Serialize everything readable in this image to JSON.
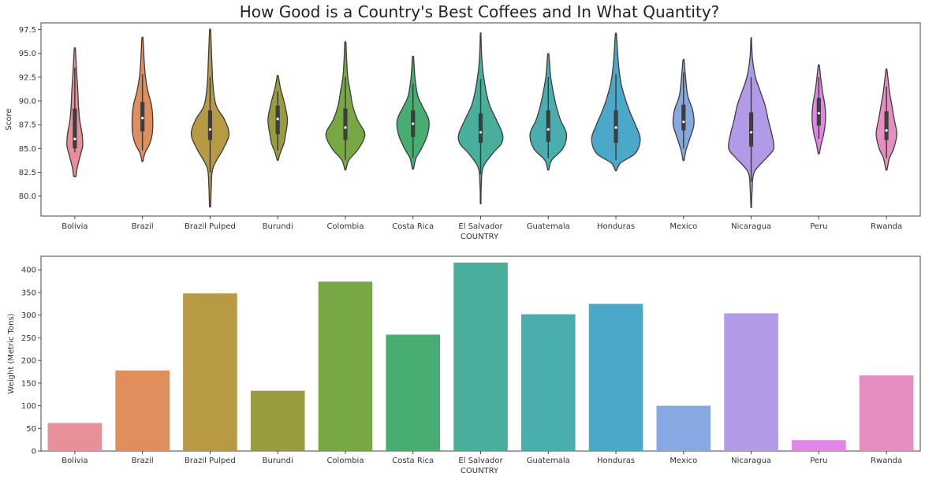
{
  "chart_data": [
    {
      "type": "violin",
      "title": "How Good is a Country's Best Coffees and In What Quantity?",
      "xlabel": "COUNTRY",
      "ylabel": "Score",
      "ylim": [
        77.9,
        98.2
      ],
      "yticks": [
        80.0,
        82.5,
        85.0,
        87.5,
        90.0,
        92.5,
        95.0,
        97.5
      ],
      "ytick_labels": [
        "80.0",
        "82.5",
        "85.0",
        "87.5",
        "90.0",
        "92.5",
        "95.0",
        "97.5"
      ],
      "grid": false,
      "categories": [
        "Bolivia",
        "Brazil",
        "Brazil Pulped",
        "Burundi",
        "Colombia",
        "Costa Rica",
        "El Salvador",
        "Guatemala",
        "Honduras",
        "Mexico",
        "Nicaragua",
        "Peru",
        "Rwanda"
      ],
      "colors": [
        "#e8909a",
        "#e08f5c",
        "#b89a45",
        "#9a9b3f",
        "#77a844",
        "#47ad71",
        "#4aae9c",
        "#4aaeae",
        "#4ba8c8",
        "#87a9e3",
        "#b39ae8",
        "#e385e6",
        "#e68ec2"
      ],
      "series": [
        {
          "category": "Bolivia",
          "min": 82.1,
          "max": 95.4,
          "q1": 85.0,
          "median": 86.0,
          "q3": 89.2,
          "whisker_low": 84.6,
          "whisker_high": 93.5,
          "profile": [
            [
              82.1,
              0.02
            ],
            [
              83.0,
              0.04
            ],
            [
              84.5,
              0.1
            ],
            [
              85.3,
              0.13
            ],
            [
              86.5,
              0.12
            ],
            [
              88.0,
              0.08
            ],
            [
              89.5,
              0.06
            ],
            [
              91.0,
              0.05
            ],
            [
              93.0,
              0.03
            ],
            [
              95.4,
              0.01
            ]
          ]
        },
        {
          "category": "Brazil",
          "min": 83.7,
          "max": 96.5,
          "q1": 86.8,
          "median": 88.2,
          "q3": 89.9,
          "whisker_low": 84.8,
          "whisker_high": 92.8,
          "profile": [
            [
              83.7,
              0.01
            ],
            [
              84.5,
              0.04
            ],
            [
              85.5,
              0.12
            ],
            [
              86.5,
              0.16
            ],
            [
              88.0,
              0.17
            ],
            [
              89.5,
              0.15
            ],
            [
              91.0,
              0.09
            ],
            [
              92.5,
              0.05
            ],
            [
              94.0,
              0.03
            ],
            [
              96.5,
              0.01
            ]
          ]
        },
        {
          "category": "Brazil Pulped",
          "min": 79.0,
          "max": 97.3,
          "q1": 85.9,
          "median": 87.0,
          "q3": 89.0,
          "whisker_low": 82.5,
          "whisker_high": 92.5,
          "profile": [
            [
              79.0,
              0.01
            ],
            [
              81.0,
              0.02
            ],
            [
              83.0,
              0.05
            ],
            [
              85.0,
              0.22
            ],
            [
              86.5,
              0.31
            ],
            [
              88.0,
              0.24
            ],
            [
              89.5,
              0.1
            ],
            [
              91.5,
              0.05
            ],
            [
              94.0,
              0.03
            ],
            [
              97.3,
              0.01
            ]
          ]
        },
        {
          "category": "Burundi",
          "min": 83.8,
          "max": 92.6,
          "q1": 86.5,
          "median": 88.1,
          "q3": 89.5,
          "whisker_low": 84.8,
          "whisker_high": 91.0,
          "profile": [
            [
              83.8,
              0.01
            ],
            [
              84.5,
              0.04
            ],
            [
              85.5,
              0.1
            ],
            [
              86.5,
              0.13
            ],
            [
              88.0,
              0.16
            ],
            [
              89.5,
              0.12
            ],
            [
              90.5,
              0.08
            ],
            [
              91.5,
              0.04
            ],
            [
              92.6,
              0.01
            ]
          ]
        },
        {
          "category": "Colombia",
          "min": 82.8,
          "max": 96.1,
          "q1": 85.9,
          "median": 87.2,
          "q3": 89.2,
          "whisker_low": 83.8,
          "whisker_high": 92.5,
          "profile": [
            [
              82.8,
              0.01
            ],
            [
              83.8,
              0.06
            ],
            [
              85.0,
              0.22
            ],
            [
              86.5,
              0.32
            ],
            [
              88.0,
              0.2
            ],
            [
              89.5,
              0.12
            ],
            [
              91.0,
              0.08
            ],
            [
              92.5,
              0.04
            ],
            [
              94.5,
              0.02
            ],
            [
              96.1,
              0.01
            ]
          ]
        },
        {
          "category": "Costa Rica",
          "min": 82.9,
          "max": 94.6,
          "q1": 86.2,
          "median": 87.6,
          "q3": 89.0,
          "whisker_low": 84.0,
          "whisker_high": 91.8,
          "profile": [
            [
              82.9,
              0.01
            ],
            [
              84.0,
              0.05
            ],
            [
              85.0,
              0.14
            ],
            [
              86.5,
              0.24
            ],
            [
              88.0,
              0.26
            ],
            [
              89.5,
              0.15
            ],
            [
              90.5,
              0.08
            ],
            [
              92.0,
              0.04
            ],
            [
              93.5,
              0.02
            ],
            [
              94.6,
              0.01
            ]
          ]
        },
        {
          "category": "El Salvador",
          "min": 79.3,
          "max": 97.0,
          "q1": 85.6,
          "median": 86.7,
          "q3": 88.7,
          "whisker_low": 82.3,
          "whisker_high": 92.3,
          "profile": [
            [
              79.3,
              0.005
            ],
            [
              81.0,
              0.01
            ],
            [
              83.0,
              0.04
            ],
            [
              84.5,
              0.2
            ],
            [
              85.5,
              0.34
            ],
            [
              86.5,
              0.36
            ],
            [
              88.0,
              0.26
            ],
            [
              89.5,
              0.15
            ],
            [
              91.0,
              0.09
            ],
            [
              93.0,
              0.04
            ],
            [
              95.0,
              0.015
            ],
            [
              97.0,
              0.005
            ]
          ]
        },
        {
          "category": "Guatemala",
          "min": 82.8,
          "max": 94.9,
          "q1": 85.7,
          "median": 87.0,
          "q3": 89.0,
          "whisker_low": 84.0,
          "whisker_high": 92.5,
          "profile": [
            [
              82.8,
              0.01
            ],
            [
              83.8,
              0.06
            ],
            [
              85.0,
              0.24
            ],
            [
              86.5,
              0.3
            ],
            [
              88.0,
              0.2
            ],
            [
              89.5,
              0.13
            ],
            [
              91.0,
              0.08
            ],
            [
              92.5,
              0.04
            ],
            [
              94.0,
              0.02
            ],
            [
              94.9,
              0.01
            ]
          ]
        },
        {
          "category": "Honduras",
          "min": 82.7,
          "max": 96.9,
          "q1": 85.6,
          "median": 87.2,
          "q3": 89.0,
          "whisker_low": 83.8,
          "whisker_high": 92.8,
          "profile": [
            [
              82.7,
              0.01
            ],
            [
              83.5,
              0.08
            ],
            [
              84.5,
              0.32
            ],
            [
              86.0,
              0.4
            ],
            [
              87.5,
              0.32
            ],
            [
              89.0,
              0.22
            ],
            [
              90.5,
              0.14
            ],
            [
              92.0,
              0.08
            ],
            [
              94.0,
              0.04
            ],
            [
              96.9,
              0.01
            ]
          ]
        },
        {
          "category": "Mexico",
          "min": 83.8,
          "max": 94.2,
          "q1": 86.9,
          "median": 87.8,
          "q3": 89.6,
          "whisker_low": 85.0,
          "whisker_high": 93.0,
          "profile": [
            [
              83.8,
              0.01
            ],
            [
              84.8,
              0.04
            ],
            [
              86.0,
              0.1
            ],
            [
              87.5,
              0.17
            ],
            [
              89.0,
              0.15
            ],
            [
              90.5,
              0.07
            ],
            [
              92.0,
              0.04
            ],
            [
              94.2,
              0.01
            ]
          ]
        },
        {
          "category": "Nicaragua",
          "min": 78.9,
          "max": 96.5,
          "q1": 85.2,
          "median": 86.7,
          "q3": 88.8,
          "whisker_low": 81.5,
          "whisker_high": 92.5,
          "profile": [
            [
              78.9,
              0.005
            ],
            [
              80.5,
              0.015
            ],
            [
              82.5,
              0.05
            ],
            [
              84.0,
              0.25
            ],
            [
              85.0,
              0.37
            ],
            [
              86.5,
              0.34
            ],
            [
              88.0,
              0.28
            ],
            [
              89.5,
              0.23
            ],
            [
              91.0,
              0.15
            ],
            [
              92.5,
              0.07
            ],
            [
              94.5,
              0.02
            ],
            [
              96.5,
              0.005
            ]
          ]
        },
        {
          "category": "Peru",
          "min": 84.5,
          "max": 93.7,
          "q1": 87.4,
          "median": 88.7,
          "q3": 90.3,
          "whisker_low": 86.0,
          "whisker_high": 92.5,
          "profile": [
            [
              84.5,
              0.01
            ],
            [
              85.5,
              0.04
            ],
            [
              86.5,
              0.08
            ],
            [
              88.0,
              0.11
            ],
            [
              89.5,
              0.1
            ],
            [
              91.0,
              0.06
            ],
            [
              92.5,
              0.03
            ],
            [
              93.7,
              0.01
            ]
          ]
        },
        {
          "category": "Rwanda",
          "min": 82.8,
          "max": 93.2,
          "q1": 85.9,
          "median": 86.9,
          "q3": 88.9,
          "whisker_low": 84.0,
          "whisker_high": 91.5,
          "profile": [
            [
              82.8,
              0.01
            ],
            [
              84.0,
              0.05
            ],
            [
              85.0,
              0.12
            ],
            [
              86.5,
              0.17
            ],
            [
              88.0,
              0.13
            ],
            [
              89.5,
              0.09
            ],
            [
              91.0,
              0.05
            ],
            [
              93.2,
              0.01
            ]
          ]
        }
      ]
    },
    {
      "type": "bar",
      "xlabel": "COUNTRY",
      "ylabel": "Weight (Metric Tons)",
      "ylim": [
        0,
        430
      ],
      "yticks": [
        0,
        50,
        100,
        150,
        200,
        250,
        300,
        350,
        400
      ],
      "ytick_labels": [
        "0",
        "50",
        "100",
        "150",
        "200",
        "250",
        "300",
        "350",
        "400"
      ],
      "grid": false,
      "categories": [
        "Bolivia",
        "Brazil",
        "Brazil Pulped",
        "Burundi",
        "Colombia",
        "Costa Rica",
        "El Salvador",
        "Guatemala",
        "Honduras",
        "Mexico",
        "Nicaragua",
        "Peru",
        "Rwanda"
      ],
      "values": [
        62,
        178,
        348,
        133,
        374,
        257,
        416,
        302,
        325,
        100,
        304,
        24,
        167
      ],
      "colors": [
        "#e8909a",
        "#e08f5c",
        "#b89a45",
        "#9a9b3f",
        "#77a844",
        "#47ad71",
        "#4aae9c",
        "#4aaeae",
        "#4ba8c8",
        "#87a9e3",
        "#b39ae8",
        "#e385e6",
        "#e68ec2"
      ]
    }
  ]
}
